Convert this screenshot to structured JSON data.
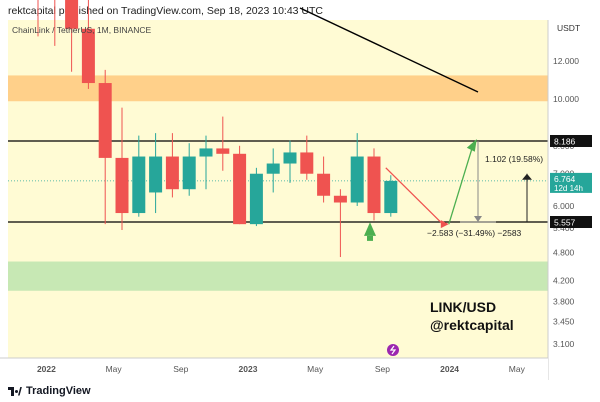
{
  "header": {
    "published_by": "rektcapital published on TradingView.com, Sep 18, 2023 10:43 UTC"
  },
  "footer": {
    "brand": "TradingView"
  },
  "chart_data": {
    "type": "candlestick",
    "symbol_label": "ChainLink / TetherUS, 1M, BINANCE",
    "currency": "USDT",
    "y_scale": "log",
    "ylim": [
      2.9,
      14.6
    ],
    "y_ticks": [
      "12.000",
      "10.000",
      "8.000",
      "7.000",
      "6.000",
      "5.400",
      "4.800",
      "4.200",
      "3.800",
      "3.450",
      "3.100"
    ],
    "x_ticks": [
      {
        "label": "2022",
        "index": 0.5
      },
      {
        "label": "May",
        "index": 4.5
      },
      {
        "label": "Sep",
        "index": 8.5
      },
      {
        "label": "2023",
        "index": 12.5
      },
      {
        "label": "May",
        "index": 16.5
      },
      {
        "label": "Sep",
        "index": 20.5
      },
      {
        "label": "2024",
        "index": 24.5
      },
      {
        "label": "May",
        "index": 28.5
      }
    ],
    "candles": [
      {
        "o": 19.4,
        "h": 21.0,
        "l": 13.5,
        "c": 18.7
      },
      {
        "o": 18.7,
        "h": 20.5,
        "l": 12.9,
        "c": 16.5
      },
      {
        "o": 16.5,
        "h": 19.0,
        "l": 11.4,
        "c": 14.0
      },
      {
        "o": 14.0,
        "h": 16.8,
        "l": 10.5,
        "c": 10.8
      },
      {
        "o": 10.8,
        "h": 11.5,
        "l": 5.5,
        "c": 7.55
      },
      {
        "o": 7.55,
        "h": 9.6,
        "l": 5.35,
        "c": 5.8
      },
      {
        "o": 5.8,
        "h": 8.4,
        "l": 5.7,
        "c": 7.6
      },
      {
        "o": 6.4,
        "h": 8.5,
        "l": 5.8,
        "c": 7.6
      },
      {
        "o": 7.6,
        "h": 8.5,
        "l": 6.25,
        "c": 6.5
      },
      {
        "o": 6.5,
        "h": 8.1,
        "l": 6.3,
        "c": 7.6
      },
      {
        "o": 7.6,
        "h": 8.4,
        "l": 6.5,
        "c": 7.9
      },
      {
        "o": 7.9,
        "h": 9.2,
        "l": 7.1,
        "c": 7.7
      },
      {
        "o": 7.7,
        "h": 8.0,
        "l": 5.5,
        "c": 5.5
      },
      {
        "o": 5.5,
        "h": 7.2,
        "l": 5.45,
        "c": 7.0
      },
      {
        "o": 7.0,
        "h": 7.9,
        "l": 6.4,
        "c": 7.35
      },
      {
        "o": 7.35,
        "h": 8.2,
        "l": 6.7,
        "c": 7.75
      },
      {
        "o": 7.75,
        "h": 8.4,
        "l": 6.8,
        "c": 7.0
      },
      {
        "o": 7.0,
        "h": 7.6,
        "l": 6.1,
        "c": 6.3
      },
      {
        "o": 6.3,
        "h": 6.5,
        "l": 4.7,
        "c": 6.1
      },
      {
        "o": 6.1,
        "h": 8.5,
        "l": 6.0,
        "c": 7.6
      },
      {
        "o": 7.6,
        "h": 7.9,
        "l": 5.6,
        "c": 5.8
      },
      {
        "o": 5.8,
        "h": 6.95,
        "l": 5.7,
        "c": 6.764
      }
    ],
    "levels": [
      {
        "label": "8.186",
        "value": 8.186
      },
      {
        "label": "5.557",
        "value": 5.557
      }
    ],
    "last_price": {
      "value": "6.764",
      "countdown": "12d 14h"
    },
    "zones": [
      {
        "type": "resistance",
        "from": 9.9,
        "to": 11.2,
        "color": "#ffd08a"
      },
      {
        "type": "support",
        "from": 4.0,
        "to": 4.6,
        "color": "#c7e8b4"
      }
    ],
    "annotations": {
      "upside": "1.102 (19.58%)",
      "downside": "−2.583 (−31.49%) −2583",
      "watermark": [
        "LINK/USD",
        "@rektcapital"
      ]
    },
    "colors": {
      "up": "#26a69a",
      "down": "#ef5350",
      "background": "#fffbd4",
      "projection_up": "#4caf50",
      "projection_down": "#ef5350"
    }
  }
}
